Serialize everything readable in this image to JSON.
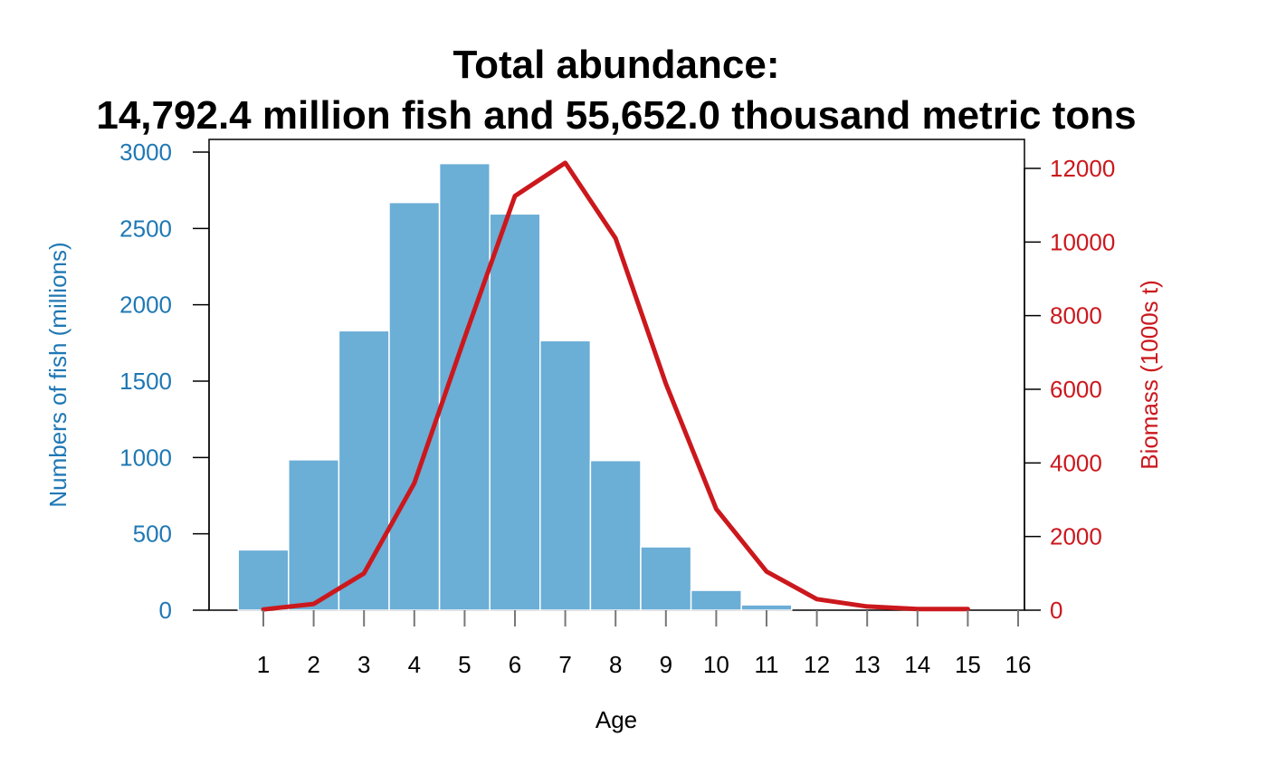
{
  "chart_data": {
    "type": "bar",
    "title_line1": "Total abundance:",
    "title_line2": "14,792.4 million fish and 55,652.0 thousand metric tons",
    "xlabel": "Age",
    "ylabel": "Numbers of fish (millions)",
    "ylabel_right": "Biomass (1000s t)",
    "x_ticks": [
      "1",
      "2",
      "3",
      "4",
      "5",
      "6",
      "7",
      "8",
      "9",
      "10",
      "11",
      "12",
      "13",
      "14",
      "15",
      "16"
    ],
    "y_ticks": [
      "0",
      "500",
      "1000",
      "1500",
      "2000",
      "2500",
      "3000"
    ],
    "y_right_ticks": [
      "0",
      "2000",
      "4000",
      "6000",
      "8000",
      "10000",
      "12000"
    ],
    "ylim": [
      0,
      3000
    ],
    "ylim_right": [
      0,
      12000
    ],
    "grid": false,
    "series": [
      {
        "kind": "bar",
        "ages": [
          1,
          2,
          3,
          4,
          5,
          6,
          7,
          8,
          9,
          10,
          11
        ],
        "values": [
          395,
          985,
          1830,
          2670,
          2925,
          2595,
          1765,
          980,
          415,
          130,
          35
        ]
      },
      {
        "kind": "line",
        "ages": [
          1,
          2,
          3,
          4,
          5,
          6,
          7,
          8,
          9,
          10,
          11,
          12,
          13,
          14,
          15
        ],
        "values": [
          20,
          170,
          1000,
          3450,
          7400,
          11250,
          12150,
          10100,
          6150,
          2750,
          1050,
          300,
          100,
          30,
          30
        ]
      }
    ],
    "colors": {
      "bars": "#6baed6",
      "bar_edge": "#ffffff",
      "line": "#cb181d",
      "left_axis": "#1f78b4",
      "right_axis": "#cb181d"
    }
  }
}
